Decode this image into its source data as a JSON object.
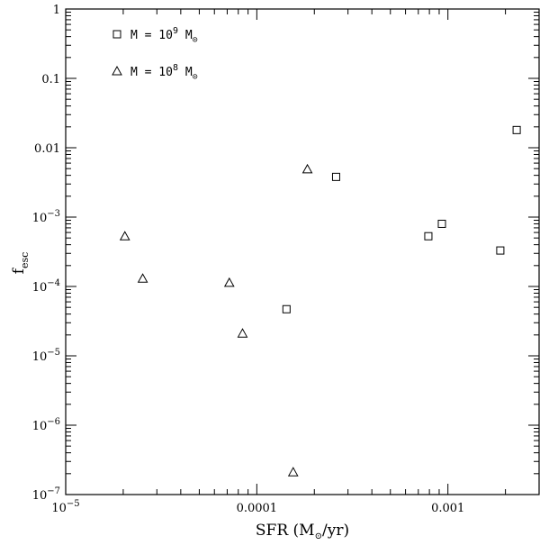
{
  "chart_data": {
    "type": "scatter",
    "xscale": "log",
    "yscale": "log",
    "xlim": [
      1e-05,
      0.003
    ],
    "ylim": [
      1e-07,
      1
    ],
    "xlabel_parts": [
      "SFR (M",
      "⊙",
      "/yr)"
    ],
    "ylabel_parts": [
      "f",
      "esc"
    ],
    "x_ticks": [
      {
        "value": 1e-05,
        "label": "10",
        "exp": "−5"
      },
      {
        "value": 0.0001,
        "label": "0.0001",
        "exp": ""
      },
      {
        "value": 0.001,
        "label": "0.001",
        "exp": ""
      }
    ],
    "y_ticks": [
      {
        "value": 1,
        "label": "1",
        "exp": ""
      },
      {
        "value": 0.1,
        "label": "0.1",
        "exp": ""
      },
      {
        "value": 0.01,
        "label": "0.01",
        "exp": ""
      },
      {
        "value": 0.001,
        "label": "10",
        "exp": "−3"
      },
      {
        "value": 0.0001,
        "label": "10",
        "exp": "−4"
      },
      {
        "value": 1e-05,
        "label": "10",
        "exp": "−5"
      },
      {
        "value": 1e-06,
        "label": "10",
        "exp": "−6"
      },
      {
        "value": 1e-07,
        "label": "10",
        "exp": "−7"
      }
    ],
    "grid": false,
    "legend_position": "top-left",
    "series": [
      {
        "name_parts": [
          "M = 10",
          "9",
          " M",
          "⊙"
        ],
        "marker": "square",
        "points": [
          {
            "x": 0.000143,
            "y": 4.7e-05
          },
          {
            "x": 0.00026,
            "y": 0.0038
          },
          {
            "x": 0.00079,
            "y": 0.00053
          },
          {
            "x": 0.00093,
            "y": 0.0008
          },
          {
            "x": 0.00188,
            "y": 0.00033
          },
          {
            "x": 0.00229,
            "y": 0.018
          }
        ]
      },
      {
        "name_parts": [
          "M = 10",
          "8",
          " M",
          "⊙"
        ],
        "marker": "triangle",
        "points": [
          {
            "x": 2.04e-05,
            "y": 0.00053
          },
          {
            "x": 2.53e-05,
            "y": 0.00013
          },
          {
            "x": 7.18e-05,
            "y": 0.000113
          },
          {
            "x": 8.42e-05,
            "y": 2.1e-05
          },
          {
            "x": 0.000155,
            "y": 2.1e-07
          },
          {
            "x": 0.000184,
            "y": 0.0049
          }
        ]
      }
    ]
  }
}
